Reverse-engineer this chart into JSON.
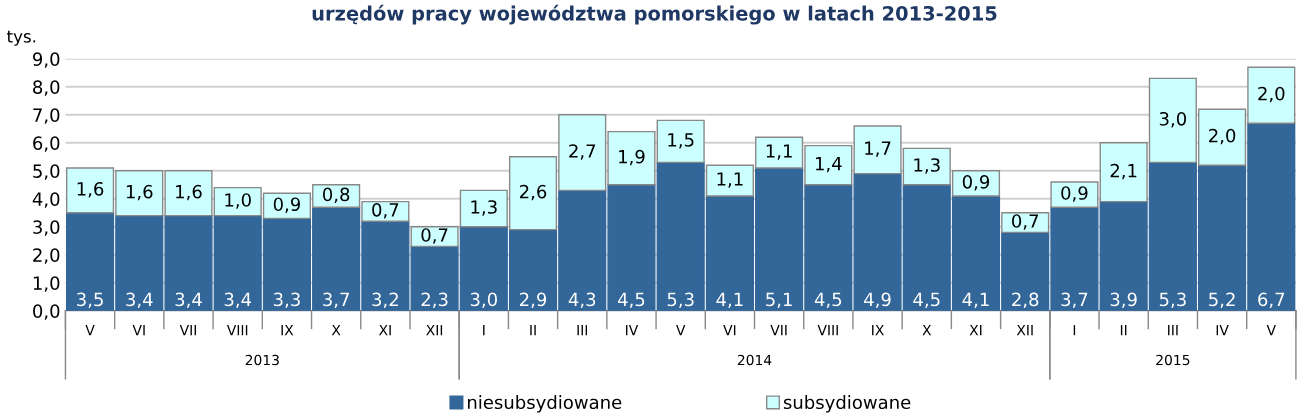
{
  "chart_data": {
    "type": "bar",
    "stacked": true,
    "title": "urzędów pracy województwa pomorskiego w latach 2013-2015",
    "ylabel": "tys.",
    "categories": [
      "V",
      "VI",
      "VII",
      "VIII",
      "IX",
      "X",
      "XI",
      "XII",
      "I",
      "II",
      "III",
      "IV",
      "V",
      "VI",
      "VII",
      "VIII",
      "IX",
      "X",
      "XI",
      "XII",
      "I",
      "II",
      "III",
      "IV",
      "V"
    ],
    "series": [
      {
        "name": "niesubsydiowane",
        "color": "#336699",
        "values": [
          3.5,
          3.4,
          3.4,
          3.4,
          3.3,
          3.7,
          3.2,
          2.3,
          3.0,
          2.9,
          4.3,
          4.5,
          5.3,
          4.1,
          5.1,
          4.5,
          4.9,
          4.5,
          4.1,
          2.8,
          3.7,
          3.9,
          5.3,
          5.2,
          6.7
        ],
        "value_labels": [
          "3,5",
          "3,4",
          "3,4",
          "3,4",
          "3,3",
          "3,7",
          "3,2",
          "2,3",
          "3,0",
          "2,9",
          "4,3",
          "4,5",
          "5,3",
          "4,1",
          "5,1",
          "4,5",
          "4,9",
          "4,5",
          "4,1",
          "2,8",
          "3,7",
          "3,9",
          "5,3",
          "5,2",
          "6,7"
        ]
      },
      {
        "name": "subsydiowane",
        "color": "#ccffff",
        "values": [
          1.6,
          1.6,
          1.6,
          1.0,
          0.9,
          0.8,
          0.7,
          0.7,
          1.3,
          2.6,
          2.7,
          1.9,
          1.5,
          1.1,
          1.1,
          1.4,
          1.7,
          1.3,
          0.9,
          0.7,
          0.9,
          2.1,
          3.0,
          2.0,
          2.0
        ],
        "value_labels": [
          "1,6",
          "1,6",
          "1,6",
          "1,0",
          "0,9",
          "0,8",
          "0,7",
          "0,7",
          "1,3",
          "2,6",
          "2,7",
          "1,9",
          "1,5",
          "1,1",
          "1,1",
          "1,4",
          "1,7",
          "1,3",
          "0,9",
          "0,7",
          "0,9",
          "2,1",
          "3,0",
          "2,0",
          "2,0"
        ]
      }
    ],
    "ylim": [
      0,
      9
    ],
    "yticks": [
      {
        "value": 0,
        "label": "0,0"
      },
      {
        "value": 1,
        "label": "1,0"
      },
      {
        "value": 2,
        "label": "2,0"
      },
      {
        "value": 3,
        "label": "3,0"
      },
      {
        "value": 4,
        "label": "4,0"
      },
      {
        "value": 5,
        "label": "5,0"
      },
      {
        "value": 6,
        "label": "6,0"
      },
      {
        "value": 7,
        "label": "7,0"
      },
      {
        "value": 8,
        "label": "8,0"
      },
      {
        "value": 9,
        "label": "9,0"
      }
    ],
    "grid": "y",
    "legend": "bottom",
    "annotations": [
      "2013",
      "2014",
      "2015"
    ]
  }
}
